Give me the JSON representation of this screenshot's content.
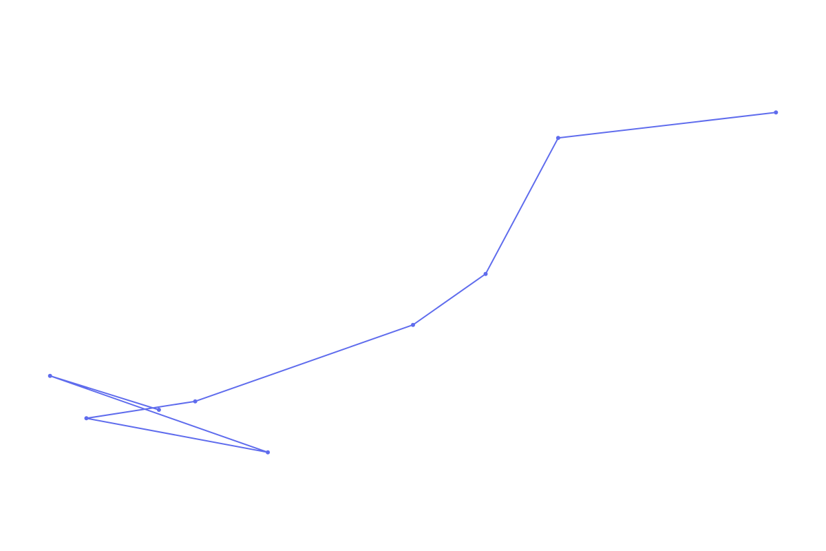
{
  "chart_data": {
    "type": "line",
    "x": [
      2.0,
      0.5,
      3.5,
      1.0,
      2.5,
      5.5,
      6.5,
      7.5,
      10.5
    ],
    "y": [
      2.5,
      2.9,
      2.0,
      2.4,
      2.6,
      3.5,
      4.1,
      5.7,
      6.0
    ],
    "xlim": [
      0,
      11
    ],
    "ylim": [
      1,
      7
    ],
    "grid": false,
    "axes_visible": false,
    "color": "#5f6ced"
  }
}
